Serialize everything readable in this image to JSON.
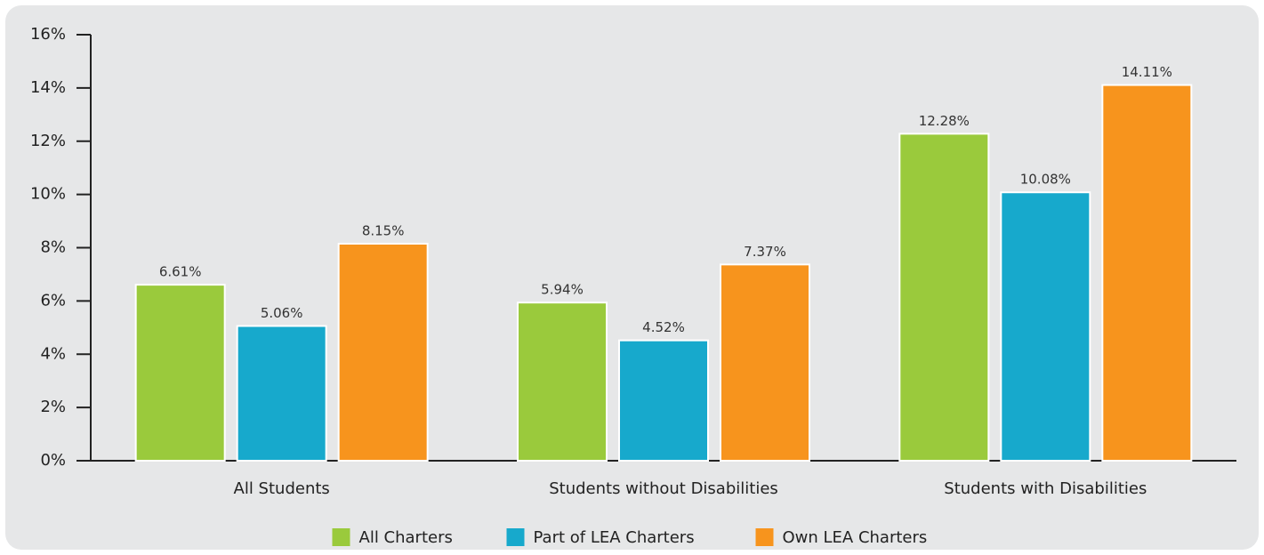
{
  "chart_data": {
    "type": "bar",
    "categories": [
      "All Students",
      "Students without Disabilities",
      "Students with Disabilities"
    ],
    "series": [
      {
        "name": "All Charters",
        "color": "#9aca3c",
        "values": [
          6.61,
          5.94,
          12.28
        ],
        "value_labels": [
          "6.61%",
          "5.94%",
          "12.28%"
        ]
      },
      {
        "name": "Part of LEA Charters",
        "color": "#17a9cc",
        "values": [
          5.06,
          4.52,
          10.08
        ],
        "value_labels": [
          "5.06%",
          "4.52%",
          "10.08%"
        ]
      },
      {
        "name": "Own LEA Charters",
        "color": "#f7941d",
        "values": [
          8.15,
          7.37,
          14.11
        ],
        "value_labels": [
          "8.15%",
          "7.37%",
          "14.11%"
        ]
      }
    ],
    "ylim": [
      0,
      16
    ],
    "yticks": [
      {
        "value": 0,
        "label": "0%"
      },
      {
        "value": 2,
        "label": "2%"
      },
      {
        "value": 4,
        "label": "4%"
      },
      {
        "value": 6,
        "label": "6%"
      },
      {
        "value": 8,
        "label": "8%"
      },
      {
        "value": 10,
        "label": "10%"
      },
      {
        "value": 12,
        "label": "12%"
      },
      {
        "value": 14,
        "label": "14%"
      },
      {
        "value": 16,
        "label": "16%"
      }
    ],
    "legend": "bottom"
  }
}
